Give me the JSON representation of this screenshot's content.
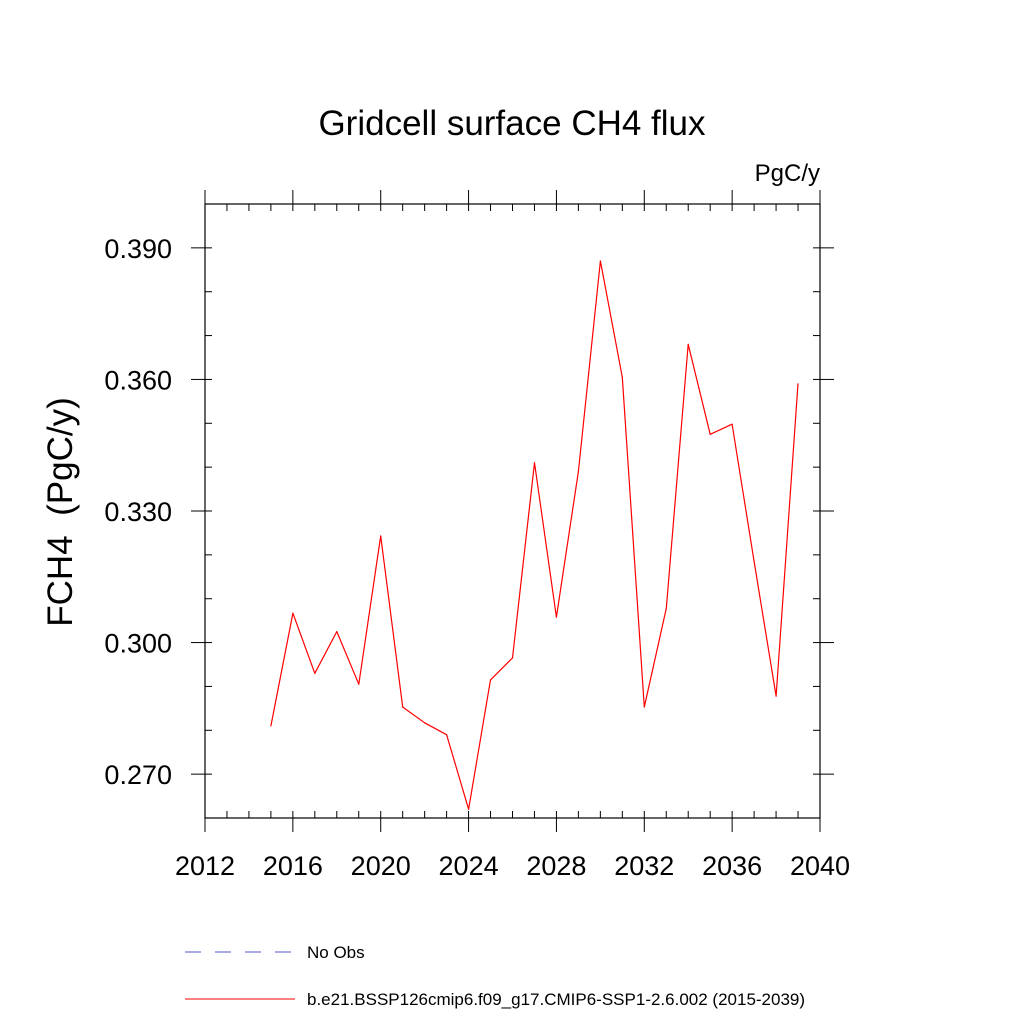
{
  "chart_data": {
    "type": "line",
    "title": "Gridcell surface CH4 flux",
    "units_label": "PgC/y",
    "ylabel": "FCH4  (PgC/y)",
    "xlabel": "",
    "xlim": [
      2012,
      2040
    ],
    "ylim": [
      0.26,
      0.4
    ],
    "x_ticks": [
      2012,
      2016,
      2020,
      2024,
      2028,
      2032,
      2036,
      2040
    ],
    "x_tick_labels": [
      "2012",
      "2016",
      "2020",
      "2024",
      "2028",
      "2032",
      "2036",
      "2040"
    ],
    "x_minor_step": 1,
    "y_ticks": [
      0.27,
      0.3,
      0.33,
      0.36,
      0.39
    ],
    "y_tick_labels": [
      "0.270",
      "0.300",
      "0.330",
      "0.360",
      "0.390"
    ],
    "y_minor_step": 0.01,
    "grid": false,
    "legend_position": "bottom",
    "series": [
      {
        "name": "b.e21.BSSP126cmip6.f09_g17.CMIP6-SSP1-2.6.002 (2015-2039)",
        "color": "#ff0000",
        "dash": "solid",
        "x": [
          2015,
          2016,
          2017,
          2018,
          2019,
          2020,
          2021,
          2022,
          2023,
          2024,
          2025,
          2026,
          2027,
          2028,
          2029,
          2030,
          2031,
          2032,
          2033,
          2034,
          2035,
          2036,
          2037,
          2038,
          2039
        ],
        "values": [
          0.281,
          0.3067,
          0.293,
          0.3025,
          0.2905,
          0.3243,
          0.2853,
          0.2817,
          0.279,
          0.262,
          0.2915,
          0.2965,
          0.341,
          0.3058,
          0.339,
          0.387,
          0.3605,
          0.2853,
          0.3078,
          0.368,
          0.3475,
          0.3498,
          0.3185,
          0.2878,
          0.359
        ]
      },
      {
        "name": "No Obs",
        "color": "#5555cc",
        "dash": "dashed",
        "x": [],
        "values": []
      }
    ]
  }
}
